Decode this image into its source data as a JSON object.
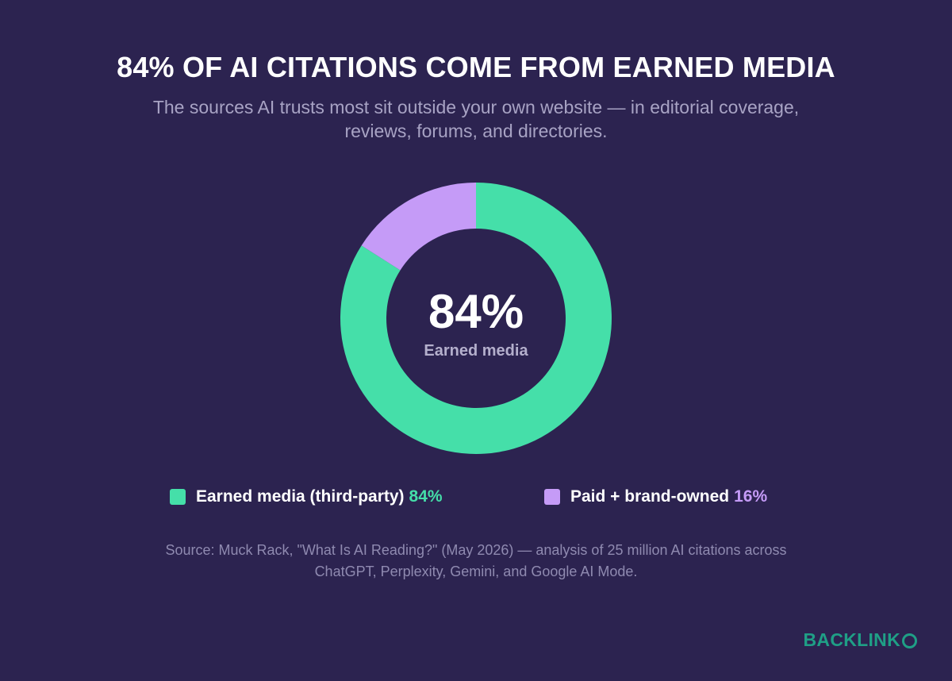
{
  "title": "84% OF AI CITATIONS COME FROM EARNED MEDIA",
  "subtitle": "The sources AI trusts most sit outside your own website — in editorial coverage, reviews, forums, and directories.",
  "chart_data": {
    "type": "pie",
    "variant": "donut",
    "slices": [
      {
        "label": "Earned media (third-party)",
        "value": 84,
        "display": "84%",
        "color": "#45dfa9"
      },
      {
        "label": "Paid + brand-owned",
        "value": 16,
        "display": "16%",
        "color": "#c59bf7"
      }
    ],
    "center_value": "84%",
    "center_label": "Earned media",
    "legend_position": "bottom"
  },
  "source": "Source: Muck Rack, \"What Is AI Reading?\" (May 2026) — analysis of 25 million AI citations across ChatGPT, Perplexity, Gemini, and Google AI Mode.",
  "brand": {
    "text": "BACKLINK",
    "icon": "ring-o-icon",
    "color": "#1f9f86"
  },
  "colors": {
    "background": "#2c2350"
  }
}
